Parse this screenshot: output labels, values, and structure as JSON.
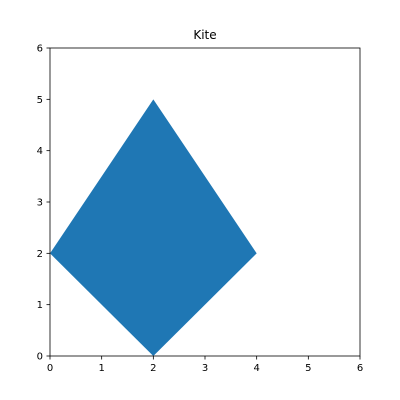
{
  "chart_data": {
    "type": "polygon",
    "title": "Kite",
    "xlabel": "",
    "ylabel": "",
    "xlim": [
      0,
      6
    ],
    "ylim": [
      0,
      6
    ],
    "xticks": [
      0,
      1,
      2,
      3,
      4,
      5,
      6
    ],
    "yticks": [
      0,
      1,
      2,
      3,
      4,
      5,
      6
    ],
    "grid": false,
    "fill_color": "#1f77b4",
    "polygon": [
      {
        "x": 2,
        "y": 0
      },
      {
        "x": 4,
        "y": 2
      },
      {
        "x": 2,
        "y": 5
      },
      {
        "x": 0,
        "y": 2
      }
    ]
  }
}
